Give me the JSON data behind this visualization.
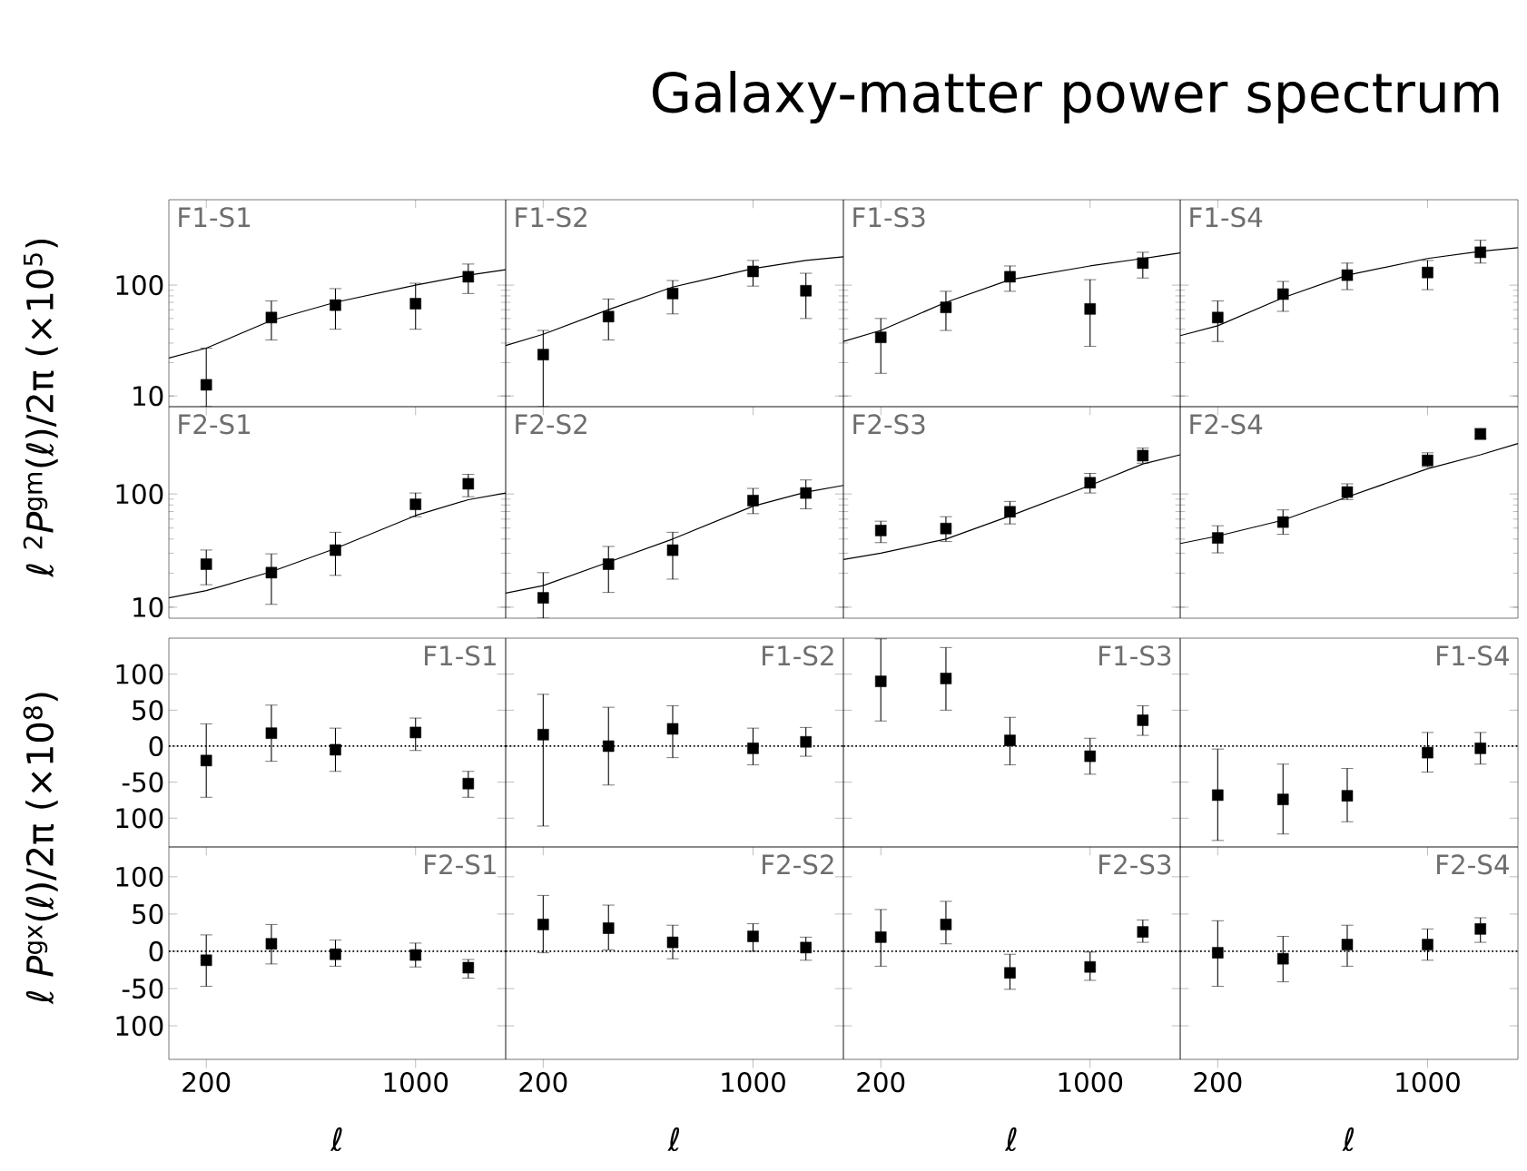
{
  "chart_data": [
    {
      "type": "scatter",
      "title": "F1-S1",
      "annotations": [
        "Galaxy-matter power spectrum"
      ],
      "ylabel": "ℓ $^{2}$*P*$^{gm}$(ℓ)/2π  (×10$^{5}$)",
      "x": [
        200,
        330,
        540,
        1000,
        1500
      ],
      "xlim": [
        150,
        2000
      ],
      "xticks": [
        200,
        1000
      ],
      "ylim": [
        8,
        590
      ],
      "yticks": [
        10,
        100
      ],
      "log": "xy",
      "tick_labels": "y",
      "series": [
        {
          "marker": "square",
          "color": "#000000",
          "values": [
            12.6,
            51,
            66,
            68,
            119
          ],
          "errors": [
            [
              8,
              27
            ],
            [
              32,
              72
            ],
            [
              40,
              93
            ],
            [
              40,
              104
            ],
            [
              84,
              155
            ]
          ]
        },
        {
          "type": "line",
          "color": "#000000",
          "x": [
            150,
            200,
            330,
            540,
            1000,
            1500,
            2000
          ],
          "values": [
            22,
            27,
            48,
            70,
            100,
            123,
            138
          ]
        }
      ]
    },
    {
      "type": "scatter",
      "title": "F1-S2",
      "x": [
        200,
        330,
        540,
        1000,
        1500
      ],
      "xlim": [
        150,
        2000
      ],
      "xticks": [
        200,
        1000
      ],
      "ylim": [
        8,
        590
      ],
      "yticks": [
        10,
        100
      ],
      "log": "xy",
      "tick_labels": false,
      "series": [
        {
          "marker": "square",
          "color": "#000000",
          "values": [
            23.6,
            52,
            84,
            133,
            89
          ],
          "errors": [
            [
              8,
              39
            ],
            [
              32,
              75
            ],
            [
              55,
              110
            ],
            [
              98,
              167
            ],
            [
              50,
              128
            ]
          ]
        },
        {
          "type": "line",
          "color": "#000000",
          "x": [
            150,
            200,
            330,
            540,
            1000,
            1500,
            2000
          ],
          "values": [
            28.5,
            36,
            60,
            96,
            141,
            167,
            180
          ]
        }
      ]
    },
    {
      "type": "scatter",
      "title": "F1-S3",
      "x": [
        200,
        330,
        540,
        1000,
        1500
      ],
      "xlim": [
        150,
        2000
      ],
      "xticks": [
        200,
        1000
      ],
      "ylim": [
        8,
        590
      ],
      "yticks": [
        10,
        100
      ],
      "log": "xy",
      "tick_labels": false,
      "series": [
        {
          "marker": "square",
          "color": "#000000",
          "values": [
            33.8,
            63,
            119,
            61,
            158
          ],
          "errors": [
            [
              16,
              50
            ],
            [
              39,
              88
            ],
            [
              88,
              149
            ],
            [
              28,
              112
            ],
            [
              116,
              198
            ]
          ]
        },
        {
          "type": "line",
          "color": "#000000",
          "x": [
            150,
            200,
            330,
            540,
            1000,
            1500,
            2000
          ],
          "values": [
            31,
            39,
            70,
            112,
            149,
            174,
            195
          ]
        }
      ]
    },
    {
      "type": "scatter",
      "title": "F1-S4",
      "x": [
        200,
        330,
        540,
        1000,
        1500
      ],
      "xlim": [
        150,
        2000
      ],
      "xticks": [
        200,
        1000
      ],
      "ylim": [
        8,
        590
      ],
      "yticks": [
        10,
        100
      ],
      "log": "xy",
      "tick_labels": false,
      "series": [
        {
          "marker": "square",
          "color": "#000000",
          "values": [
            51,
            83,
            123,
            130,
            198
          ],
          "errors": [
            [
              31,
              72
            ],
            [
              58,
              108
            ],
            [
              91,
              158
            ],
            [
              91,
              167
            ],
            [
              158,
              254
            ]
          ]
        },
        {
          "type": "line",
          "color": "#000000",
          "x": [
            150,
            200,
            330,
            540,
            1000,
            1500,
            2000
          ],
          "values": [
            35,
            43,
            77,
            123,
            174,
            202,
            218
          ]
        }
      ]
    },
    {
      "type": "scatter",
      "title": "F2-S1",
      "x": [
        200,
        330,
        540,
        1000,
        1500
      ],
      "xlim": [
        150,
        2000
      ],
      "xticks": [
        200,
        1000
      ],
      "ylim": [
        8,
        590
      ],
      "yticks": [
        10,
        100
      ],
      "log": "xy",
      "tick_labels": "y",
      "series": [
        {
          "marker": "square",
          "color": "#000000",
          "values": [
            24,
            20.2,
            31.9,
            81,
            123
          ],
          "errors": [
            [
              15.8,
              32
            ],
            [
              10.6,
              29.6
            ],
            [
              19.1,
              45.9
            ],
            [
              63,
              102
            ],
            [
              94.6,
              149
            ]
          ]
        },
        {
          "type": "line",
          "color": "#000000",
          "x": [
            150,
            200,
            330,
            540,
            1000,
            1500,
            2000
          ],
          "values": [
            12.1,
            14,
            20.6,
            33,
            64.5,
            89,
            102
          ]
        }
      ]
    },
    {
      "type": "scatter",
      "title": "F2-S2",
      "x": [
        200,
        330,
        540,
        1000,
        1500
      ],
      "xlim": [
        150,
        2000
      ],
      "xticks": [
        200,
        1000
      ],
      "ylim": [
        8,
        590
      ],
      "yticks": [
        10,
        100
      ],
      "log": "xy",
      "tick_labels": false,
      "series": [
        {
          "marker": "square",
          "color": "#000000",
          "values": [
            12.1,
            24,
            31.9,
            87.5,
            102
          ],
          "errors": [
            [
              8,
              20.2
            ],
            [
              13.5,
              34.4
            ],
            [
              17.7,
              45.9
            ],
            [
              67,
              112
            ],
            [
              74,
              133
            ]
          ]
        },
        {
          "type": "line",
          "color": "#000000",
          "x": [
            150,
            200,
            330,
            540,
            1000,
            1500,
            2000
          ],
          "values": [
            13.3,
            15.5,
            25,
            40,
            78,
            104,
            119
          ]
        }
      ]
    },
    {
      "type": "scatter",
      "title": "F2-S3",
      "x": [
        200,
        330,
        540,
        1000,
        1500
      ],
      "xlim": [
        150,
        2000
      ],
      "xticks": [
        200,
        1000
      ],
      "ylim": [
        8,
        590
      ],
      "yticks": [
        10,
        100
      ],
      "log": "xy",
      "tick_labels": false,
      "series": [
        {
          "marker": "square",
          "color": "#000000",
          "values": [
            47.6,
            49.5,
            69.6,
            125.6,
            218
          ],
          "errors": [
            [
              37.2,
              57.5
            ],
            [
              38,
              63
            ],
            [
              54.4,
              86
            ],
            [
              102,
              152
            ],
            [
              187,
              254
            ]
          ]
        },
        {
          "type": "line",
          "color": "#000000",
          "x": [
            150,
            200,
            330,
            540,
            1000,
            1500,
            2000
          ],
          "values": [
            26.4,
            30,
            40,
            64,
            119,
            184,
            222
          ]
        }
      ]
    },
    {
      "type": "scatter",
      "title": "F2-S4",
      "x": [
        200,
        330,
        540,
        1000,
        1500
      ],
      "xlim": [
        150,
        2000
      ],
      "xticks": [
        200,
        1000
      ],
      "ylim": [
        8,
        590
      ],
      "yticks": [
        10,
        100
      ],
      "log": "xy",
      "tick_labels": false,
      "series": [
        {
          "marker": "square",
          "color": "#000000",
          "values": [
            40.9,
            56.5,
            104,
            198,
            338
          ],
          "errors": [
            [
              30.2,
              52.4
            ],
            [
              44.1,
              72.4
            ],
            [
              89.2,
              123
            ],
            [
              174,
              231
            ],
            [
              306,
              379
            ]
          ]
        },
        {
          "type": "line",
          "color": "#000000",
          "x": [
            150,
            200,
            330,
            540,
            1000,
            1500,
            2000
          ],
          "values": [
            36.5,
            42.5,
            58.7,
            94,
            167,
            222,
            279
          ]
        }
      ]
    },
    {
      "type": "scatter",
      "title": "F1-S1",
      "ylabel": "ℓ *P*$^{gx}$(ℓ)/2π  (×10$^{8}$)",
      "x": [
        200,
        330,
        540,
        1000,
        1500
      ],
      "xlim": [
        150,
        2000
      ],
      "xticks": [
        200,
        1000
      ],
      "ylim": [
        -140,
        150
      ],
      "yticks": [
        100,
        50,
        0,
        -50,
        {
          "value": -100,
          "label": "100"
        }
      ],
      "log": "x",
      "tick_labels": "y",
      "ref_lines": [
        {
          "axis": "y",
          "value": 0,
          "line_style": "dotted"
        }
      ],
      "series": [
        {
          "marker": "square",
          "color": "#000000",
          "values": [
            -20,
            18,
            -5,
            19,
            -52
          ],
          "errors": [
            [
              -71,
              31
            ],
            [
              -21,
              57
            ],
            [
              -35,
              25
            ],
            [
              -6,
              39
            ],
            [
              -71,
              -35
            ]
          ]
        }
      ]
    },
    {
      "type": "scatter",
      "title": "F1-S2",
      "x": [
        200,
        330,
        540,
        1000,
        1500
      ],
      "xlim": [
        150,
        2000
      ],
      "xticks": [
        200,
        1000
      ],
      "ylim": [
        -140,
        150
      ],
      "yticks": [
        100,
        50,
        0,
        -50,
        -100
      ],
      "log": "x",
      "tick_labels": false,
      "ref_lines": [
        {
          "axis": "y",
          "value": 0,
          "line_style": "dotted"
        }
      ],
      "series": [
        {
          "marker": "square",
          "color": "#000000",
          "values": [
            16,
            0,
            24,
            -3,
            6
          ],
          "errors": [
            [
              -111,
              72
            ],
            [
              -54,
              54
            ],
            [
              -16,
              56
            ],
            [
              -26,
              25
            ],
            [
              -14,
              26
            ]
          ]
        }
      ]
    },
    {
      "type": "scatter",
      "title": "F1-S3",
      "x": [
        200,
        330,
        540,
        1000,
        1500
      ],
      "xlim": [
        150,
        2000
      ],
      "xticks": [
        200,
        1000
      ],
      "ylim": [
        -140,
        150
      ],
      "yticks": [
        100,
        50,
        0,
        -50,
        -100
      ],
      "log": "x",
      "tick_labels": false,
      "ref_lines": [
        {
          "axis": "y",
          "value": 0,
          "line_style": "dotted"
        }
      ],
      "series": [
        {
          "marker": "square",
          "color": "#000000",
          "values": [
            90,
            94,
            8,
            -14,
            36
          ],
          "errors": [
            [
              35,
              149
            ],
            [
              50,
              137
            ],
            [
              -26,
              40
            ],
            [
              -39,
              11
            ],
            [
              15,
              56
            ]
          ]
        }
      ]
    },
    {
      "type": "scatter",
      "title": "F1-S4",
      "x": [
        200,
        330,
        540,
        1000,
        1500
      ],
      "xlim": [
        150,
        2000
      ],
      "xticks": [
        200,
        1000
      ],
      "ylim": [
        -140,
        150
      ],
      "yticks": [
        100,
        50,
        0,
        -50,
        -100
      ],
      "log": "x",
      "tick_labels": false,
      "ref_lines": [
        {
          "axis": "y",
          "value": 0,
          "line_style": "dotted"
        }
      ],
      "series": [
        {
          "marker": "square",
          "color": "#000000",
          "values": [
            -68,
            -74,
            -69,
            -9,
            -3
          ],
          "errors": [
            [
              -131,
              -4
            ],
            [
              -122,
              -25
            ],
            [
              -105,
              -31
            ],
            [
              -36,
              19
            ],
            [
              -25,
              19
            ]
          ]
        }
      ]
    },
    {
      "type": "scatter",
      "title": "F2-S1",
      "xlabel": "ℓ",
      "x": [
        200,
        330,
        540,
        1000,
        1500
      ],
      "xlim": [
        150,
        2000
      ],
      "xticks": [
        200,
        1000
      ],
      "ylim": [
        -145,
        140
      ],
      "yticks": [
        100,
        50,
        0,
        -50,
        {
          "value": -100,
          "label": "100"
        }
      ],
      "log": "x",
      "ref_lines": [
        {
          "axis": "y",
          "value": 0,
          "line_style": "dotted"
        }
      ],
      "series": [
        {
          "marker": "square",
          "color": "#000000",
          "values": [
            -12,
            10,
            -4,
            -5,
            -22
          ],
          "errors": [
            [
              -47,
              22
            ],
            [
              -17,
              36
            ],
            [
              -20,
              15
            ],
            [
              -21,
              11
            ],
            [
              -36,
              -11
            ]
          ]
        }
      ]
    },
    {
      "type": "scatter",
      "title": "F2-S2",
      "xlabel": "ℓ",
      "x": [
        200,
        330,
        540,
        1000,
        1500
      ],
      "xlim": [
        150,
        2000
      ],
      "xticks": [
        200,
        1000
      ],
      "ylim": [
        -145,
        140
      ],
      "yticks": [
        100,
        50,
        0,
        -50,
        -100
      ],
      "log": "x",
      "tick_labels": "x",
      "ref_lines": [
        {
          "axis": "y",
          "value": 0,
          "line_style": "dotted"
        }
      ],
      "series": [
        {
          "marker": "square",
          "color": "#000000",
          "values": [
            36,
            31,
            12,
            20,
            5
          ],
          "errors": [
            [
              -2,
              75
            ],
            [
              2,
              62
            ],
            [
              -10,
              35
            ],
            [
              0,
              37
            ],
            [
              -12,
              19
            ]
          ]
        }
      ]
    },
    {
      "type": "scatter",
      "title": "F2-S3",
      "xlabel": "ℓ",
      "x": [
        200,
        330,
        540,
        1000,
        1500
      ],
      "xlim": [
        150,
        2000
      ],
      "xticks": [
        200,
        1000
      ],
      "ylim": [
        -145,
        140
      ],
      "yticks": [
        100,
        50,
        0,
        -50,
        -100
      ],
      "log": "x",
      "tick_labels": "x",
      "ref_lines": [
        {
          "axis": "y",
          "value": 0,
          "line_style": "dotted"
        }
      ],
      "series": [
        {
          "marker": "square",
          "color": "#000000",
          "values": [
            19,
            36,
            -29,
            -21,
            26
          ],
          "errors": [
            [
              -20,
              56
            ],
            [
              10,
              67
            ],
            [
              -51,
              -4
            ],
            [
              -39,
              -1
            ],
            [
              12,
              42
            ]
          ]
        }
      ]
    },
    {
      "type": "scatter",
      "title": "F2-S4",
      "xlabel": "ℓ",
      "x": [
        200,
        330,
        540,
        1000,
        1500
      ],
      "xlim": [
        150,
        2000
      ],
      "xticks": [
        200,
        1000
      ],
      "ylim": [
        -145,
        140
      ],
      "yticks": [
        100,
        50,
        0,
        -50,
        -100
      ],
      "log": "x",
      "tick_labels": "x",
      "ref_lines": [
        {
          "axis": "y",
          "value": 0,
          "line_style": "dotted"
        }
      ],
      "series": [
        {
          "marker": "square",
          "color": "#000000",
          "values": [
            -2,
            -10,
            9,
            9,
            30
          ],
          "errors": [
            [
              -47,
              41
            ],
            [
              -41,
              20
            ],
            [
              -20,
              35
            ],
            [
              -12,
              30
            ],
            [
              12,
              45
            ]
          ]
        }
      ]
    }
  ]
}
